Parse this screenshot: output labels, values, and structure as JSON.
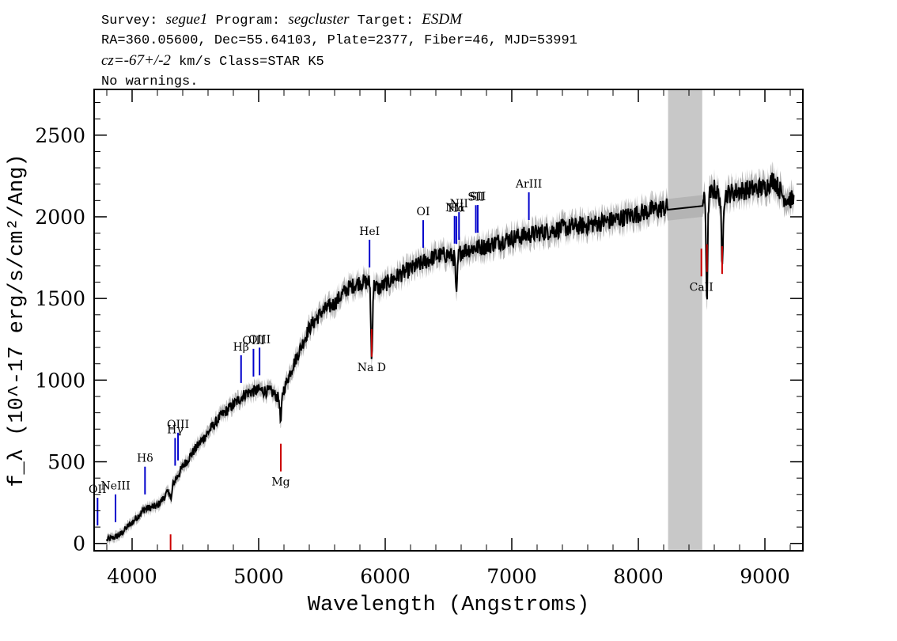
{
  "header": {
    "survey_label": "Survey:",
    "survey": "segue1",
    "program_label": "Program:",
    "program": "segcluster",
    "target_label": "Target:",
    "target": "ESDM",
    "line2": "RA=360.05600, Dec=55.64103, Plate=2377, Fiber=46, MJD=53991",
    "cz_label": "cz=-67+/-2",
    "cz_rest": " km/s Class=STAR K5",
    "warnings": "No warnings."
  },
  "chart_data": {
    "type": "line",
    "title": "",
    "xlabel": "Wavelength (Angstroms)",
    "ylabel": "f_λ (10^-17 erg/s/cm²/Ang)",
    "xlim": [
      3700,
      9300
    ],
    "ylim": [
      -45,
      2780
    ],
    "x_ticks": [
      4000,
      5000,
      6000,
      7000,
      8000,
      9000
    ],
    "x_tick_labels": [
      "4000",
      "5000",
      "6000",
      "7000",
      "8000",
      "9000"
    ],
    "y_ticks": [
      0,
      500,
      1000,
      1500,
      2000,
      2500
    ],
    "y_tick_labels": [
      "0",
      "500",
      "1000",
      "1500",
      "2000",
      "2500"
    ],
    "masked_region": [
      8235,
      8505
    ],
    "spectrum": {
      "name": "flux",
      "x": [
        3800,
        3900,
        4000,
        4100,
        4200,
        4300,
        4400,
        4500,
        4600,
        4700,
        4800,
        4900,
        5000,
        5100,
        5170,
        5250,
        5400,
        5500,
        5600,
        5700,
        5800,
        5880,
        5950,
        6100,
        6200,
        6300,
        6400,
        6500,
        6560,
        6600,
        6700,
        6800,
        6900,
        7000,
        7200,
        7400,
        7600,
        7800,
        8000,
        8100,
        8240,
        8500,
        8540,
        8580,
        8600,
        8662,
        8700,
        8800,
        8900,
        9000,
        9070,
        9150,
        9230
      ],
      "y": [
        20,
        50,
        130,
        210,
        230,
        330,
        470,
        580,
        680,
        780,
        850,
        920,
        940,
        930,
        880,
        1050,
        1320,
        1420,
        1470,
        1560,
        1600,
        1600,
        1560,
        1640,
        1680,
        1720,
        1760,
        1770,
        1740,
        1790,
        1810,
        1820,
        1850,
        1870,
        1900,
        1930,
        1950,
        1980,
        2020,
        2040,
        2060,
        2085,
        2110,
        2150,
        2170,
        2100,
        2140,
        2160,
        2170,
        2180,
        2230,
        2120,
        2100
      ]
    },
    "absorption_features": [
      {
        "x": 5175,
        "depth": 150
      },
      {
        "x": 5893,
        "depth": 470
      },
      {
        "x": 6563,
        "depth": 240
      },
      {
        "x": 8542,
        "depth": 620
      },
      {
        "x": 8662,
        "depth": 420
      },
      {
        "x": 4308,
        "depth": 80
      }
    ],
    "emission_line_markers": [
      {
        "label": "OII",
        "x": 3727
      },
      {
        "label": "NeIII",
        "x": 3869
      },
      {
        "label": "Hδ",
        "x": 4102
      },
      {
        "label": "Hγ",
        "x": 4340
      },
      {
        "label": "OIII",
        "x": 4363
      },
      {
        "label": "Hβ",
        "x": 4861
      },
      {
        "label": "OIII",
        "x": 4959
      },
      {
        "label": "OIII",
        "x": 5007
      },
      {
        "label": "HeI",
        "x": 5876
      },
      {
        "label": "OI",
        "x": 6300
      },
      {
        "label": "NII",
        "x": 6548
      },
      {
        "label": "Hα",
        "x": 6563
      },
      {
        "label": "NII",
        "x": 6583
      },
      {
        "label": "SII",
        "x": 6716
      },
      {
        "label": "SII",
        "x": 6731
      },
      {
        "label": "ArIII",
        "x": 7135
      }
    ],
    "absorption_line_markers": [
      {
        "label": "",
        "x": 4304
      },
      {
        "label": "Mg",
        "x": 5175
      },
      {
        "label": "Na D",
        "x": 5893
      },
      {
        "label": "CaII",
        "x": 8498
      },
      {
        "label": "",
        "x": 8542
      },
      {
        "label": "",
        "x": 8662
      }
    ],
    "colors": {
      "spectrum": "#000000",
      "error_band": "#b4b4b4",
      "masked_region": "#c8c8c8",
      "emission_marker": "#0000cc",
      "absorption_marker": "#cc0000"
    }
  }
}
